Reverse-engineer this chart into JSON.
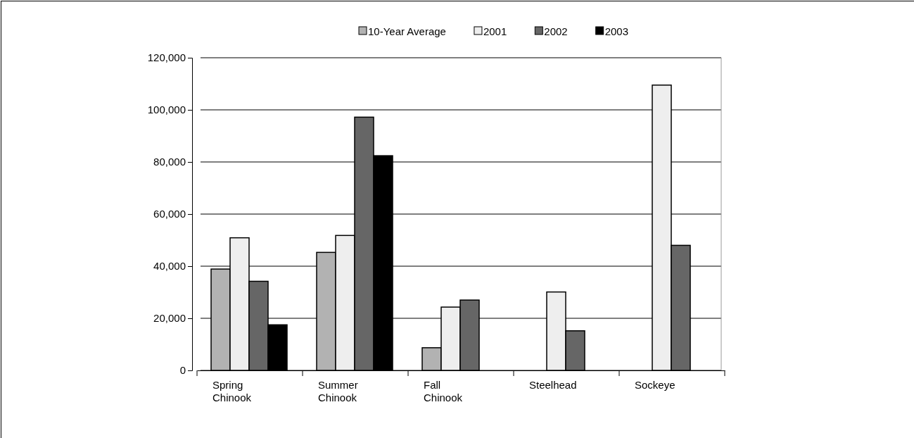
{
  "chart_data": {
    "type": "bar",
    "categories": [
      "Spring Chinook",
      "Summer Chinook",
      "Fall Chinook",
      "Steelhead",
      "Sockeye"
    ],
    "series": [
      {
        "name": "10-Year Average",
        "color": "#b2b2b2",
        "values": [
          38900,
          45300,
          8700,
          null,
          null
        ]
      },
      {
        "name": "2001",
        "color": "#eeeeee",
        "values": [
          50900,
          51800,
          24300,
          30100,
          109500
        ]
      },
      {
        "name": "2002",
        "color": "#666666",
        "values": [
          34200,
          97200,
          27000,
          15200,
          48000
        ]
      },
      {
        "name": "2003",
        "color": "#000000",
        "values": [
          17500,
          82400,
          null,
          null,
          null
        ]
      }
    ],
    "ylim": [
      0,
      120000
    ],
    "yticks": [
      {
        "value": 0,
        "label": "0"
      },
      {
        "value": 20000,
        "label": "20,000"
      },
      {
        "value": 40000,
        "label": "40,000"
      },
      {
        "value": 60000,
        "label": "60,000"
      },
      {
        "value": 80000,
        "label": "80,000"
      },
      {
        "value": 100000,
        "label": "100,000"
      },
      {
        "value": 120000,
        "label": "120,000"
      }
    ],
    "grid": "y",
    "legend": "top right"
  }
}
